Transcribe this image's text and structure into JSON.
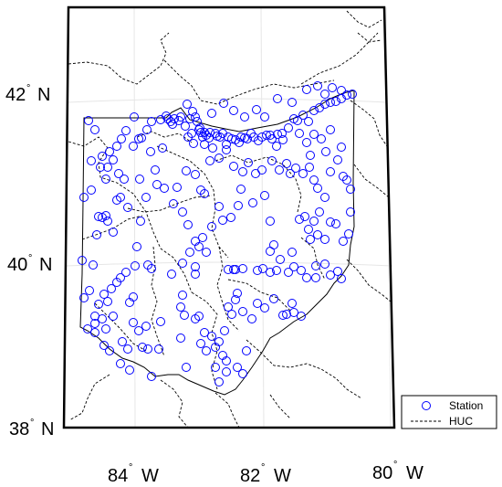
{
  "map": {
    "lat_labels": [
      {
        "deg": "42",
        "hemi": "N",
        "value": 42
      },
      {
        "deg": "40",
        "hemi": "N",
        "value": 40
      },
      {
        "deg": "38",
        "hemi": "N",
        "value": 38
      }
    ],
    "lon_labels": [
      {
        "deg": "84",
        "hemi": "W",
        "value": -84
      },
      {
        "deg": "82",
        "hemi": "W",
        "value": -82
      },
      {
        "deg": "80",
        "hemi": "W",
        "value": -80
      }
    ],
    "legend": [
      {
        "label": "Station",
        "symbol": "circle",
        "color": "#0000ff"
      },
      {
        "label": "HUC",
        "symbol": "dashed-line",
        "color": "#000000"
      }
    ],
    "colors": {
      "station": "#0000ff",
      "state_boundary": "#000000",
      "huc_boundary": "#000000",
      "graticule": "#e6e6e6",
      "frame": "#000000"
    },
    "grid": true
  }
}
